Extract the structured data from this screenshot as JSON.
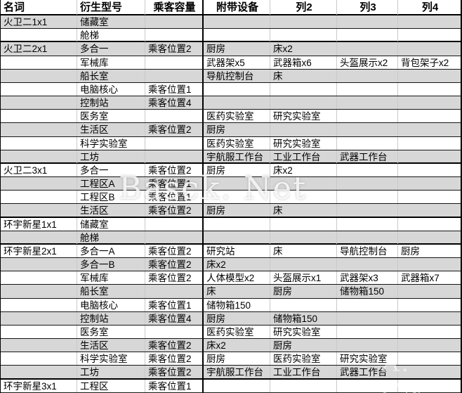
{
  "header": {
    "columns": [
      {
        "label": "名词"
      },
      {
        "label": "衍生型号"
      },
      {
        "label": "乘客容量"
      },
      {
        "label": "附带设备"
      },
      {
        "label": "列2"
      },
      {
        "label": "列3"
      },
      {
        "label": "列4"
      }
    ]
  },
  "rows": [
    {
      "cells": [
        "火卫二1x1",
        "储藏室",
        "",
        "",
        "",
        "",
        ""
      ],
      "shade": true,
      "group_end": false
    },
    {
      "cells": [
        "",
        "舱梯",
        "",
        "",
        "",
        "",
        ""
      ],
      "shade": false,
      "group_end": true
    },
    {
      "cells": [
        "火卫二2x1",
        "多合一",
        "乘客位置2",
        "厨房",
        "床x2",
        "",
        ""
      ],
      "shade": true,
      "group_end": false
    },
    {
      "cells": [
        "",
        "军械库",
        "",
        "武器架x5",
        "武器箱x6",
        "头盔展示x2",
        "背包架子x2"
      ],
      "shade": false,
      "group_end": false
    },
    {
      "cells": [
        "",
        "船长室",
        "",
        "导航控制台",
        "床",
        "",
        ""
      ],
      "shade": true,
      "group_end": false
    },
    {
      "cells": [
        "",
        "电脑核心",
        "乘客位置1",
        "",
        "",
        "",
        ""
      ],
      "shade": false,
      "group_end": false
    },
    {
      "cells": [
        "",
        "控制站",
        "乘客位置4",
        "",
        "",
        "",
        ""
      ],
      "shade": true,
      "group_end": false
    },
    {
      "cells": [
        "",
        "医务室",
        "",
        "医药实验室",
        "研究实验室",
        "",
        ""
      ],
      "shade": false,
      "group_end": false
    },
    {
      "cells": [
        "",
        "生活区",
        "乘客位置2",
        "厨房",
        "",
        "",
        ""
      ],
      "shade": true,
      "group_end": false
    },
    {
      "cells": [
        "",
        "科学实验室",
        "",
        "医药实验室",
        "研究实验室",
        "",
        ""
      ],
      "shade": false,
      "group_end": false
    },
    {
      "cells": [
        "",
        "工坊",
        "",
        "宇航服工作台",
        "工业工作台",
        "武器工作台",
        ""
      ],
      "shade": true,
      "group_end": true
    },
    {
      "cells": [
        "火卫二3x1",
        "多合一",
        "乘客位置2",
        "厨房",
        "床x2",
        "",
        ""
      ],
      "shade": false,
      "group_end": false
    },
    {
      "cells": [
        "",
        "工程区A",
        "乘客位置1",
        "",
        "",
        "",
        ""
      ],
      "shade": true,
      "group_end": false
    },
    {
      "cells": [
        "",
        "工程区B",
        "乘客位置1",
        "",
        "",
        "",
        ""
      ],
      "shade": false,
      "group_end": false
    },
    {
      "cells": [
        "",
        "生活区",
        "乘客位置2",
        "厨房",
        "床",
        "",
        ""
      ],
      "shade": true,
      "group_end": true
    },
    {
      "cells": [
        "环宇新星1x1",
        "储藏室",
        "",
        "",
        "",
        "",
        ""
      ],
      "shade": false,
      "group_end": false
    },
    {
      "cells": [
        "",
        "舱梯",
        "",
        "",
        "",
        "",
        ""
      ],
      "shade": true,
      "group_end": true
    },
    {
      "cells": [
        "环宇新星2x1",
        "多合一A",
        "乘客位置2",
        "研究站",
        "床",
        "导航控制台",
        "厨房"
      ],
      "shade": false,
      "group_end": false
    },
    {
      "cells": [
        "",
        "多合一B",
        "乘客位置2",
        "床x2",
        "",
        "",
        ""
      ],
      "shade": true,
      "group_end": false
    },
    {
      "cells": [
        "",
        "军械库",
        "乘客位置2",
        "人体模型x2",
        "头盔展示x1",
        "武器架x3",
        "武器箱x7"
      ],
      "shade": false,
      "group_end": false
    },
    {
      "cells": [
        "",
        "船长室",
        "",
        "床",
        "厨房",
        "储物箱150",
        ""
      ],
      "shade": true,
      "group_end": false
    },
    {
      "cells": [
        "",
        "电脑核心",
        "乘客位置1",
        "储物箱150",
        "",
        "",
        ""
      ],
      "shade": false,
      "group_end": false
    },
    {
      "cells": [
        "",
        "控制站",
        "乘客位置4",
        "厨房",
        "储物箱150",
        "",
        ""
      ],
      "shade": true,
      "group_end": false
    },
    {
      "cells": [
        "",
        "医务室",
        "",
        "医药实验室",
        "研究实验室",
        "",
        ""
      ],
      "shade": false,
      "group_end": false
    },
    {
      "cells": [
        "",
        "生活区",
        "乘客位置2",
        "床x2",
        "厨房",
        "",
        ""
      ],
      "shade": true,
      "group_end": false
    },
    {
      "cells": [
        "",
        "科学实验室",
        "乘客位置2",
        "厨房",
        "医药实验室",
        "研究实验室",
        ""
      ],
      "shade": false,
      "group_end": false
    },
    {
      "cells": [
        "",
        "工坊",
        "乘客位置2",
        "宇航服工作台",
        "工业工作台",
        "武器工作台",
        ""
      ],
      "shade": true,
      "group_end": true
    },
    {
      "cells": [
        "环宇新星3x1",
        "工程区",
        "乘客位置1",
        "",
        "",
        "",
        ""
      ],
      "shade": false,
      "group_end": false
    }
  ],
  "watermarks": {
    "main": "Basck. Net",
    "corner": "A. CN"
  },
  "colors": {
    "row_shade": "#d7d7d7",
    "grid_line": "#c9c9c9",
    "border": "#000000"
  }
}
